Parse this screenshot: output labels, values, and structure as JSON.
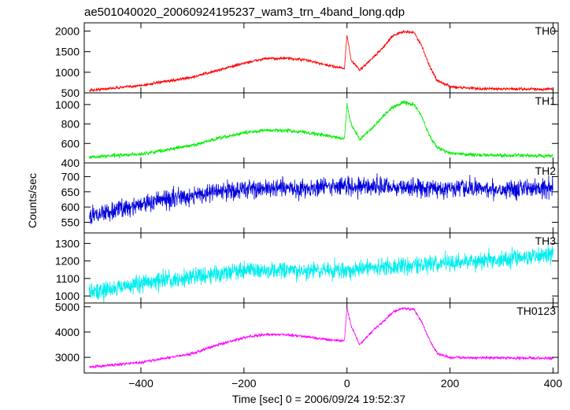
{
  "title": "ae501040020_20060924195237_wam3_trn_4band_long.qdp",
  "xlabel": "Time [sec] 0 = 2006/09/24 19:52:37",
  "ylabel": "Counts/sec",
  "chart_data": {
    "type": "line",
    "title": "ae501040020_20060924195237_wam3_trn_4band_long.qdp",
    "xlabel": "Time [sec] 0 = 2006/09/24 19:52:37",
    "ylabel": "Counts/sec",
    "xlim": [
      -510,
      410
    ],
    "x_ticks": [
      -400,
      -200,
      0,
      200,
      400
    ],
    "grid": false,
    "panels": [
      {
        "name": "TH0",
        "color": "#ff0000",
        "ylim": [
          500,
          2200
        ],
        "y_ticks": [
          500,
          1000,
          1500,
          2000
        ],
        "noise": 35,
        "keypoints": [
          [
            -500,
            560
          ],
          [
            -400,
            680
          ],
          [
            -300,
            880
          ],
          [
            -250,
            1050
          ],
          [
            -200,
            1220
          ],
          [
            -160,
            1330
          ],
          [
            -120,
            1340
          ],
          [
            -80,
            1300
          ],
          [
            -40,
            1170
          ],
          [
            -5,
            1100
          ],
          [
            0,
            1900
          ],
          [
            8,
            1300
          ],
          [
            25,
            1050
          ],
          [
            50,
            1350
          ],
          [
            70,
            1600
          ],
          [
            90,
            1900
          ],
          [
            110,
            1980
          ],
          [
            130,
            1970
          ],
          [
            145,
            1650
          ],
          [
            160,
            1150
          ],
          [
            175,
            800
          ],
          [
            200,
            650
          ],
          [
            260,
            600
          ],
          [
            400,
            590
          ]
        ]
      },
      {
        "name": "TH1",
        "color": "#00ee00",
        "ylim": [
          400,
          1120
        ],
        "y_ticks": [
          400,
          600,
          800,
          1000
        ],
        "noise": 18,
        "keypoints": [
          [
            -500,
            460
          ],
          [
            -400,
            490
          ],
          [
            -300,
            580
          ],
          [
            -250,
            650
          ],
          [
            -200,
            710
          ],
          [
            -160,
            735
          ],
          [
            -120,
            735
          ],
          [
            -80,
            715
          ],
          [
            -40,
            680
          ],
          [
            -5,
            650
          ],
          [
            0,
            1000
          ],
          [
            8,
            800
          ],
          [
            25,
            640
          ],
          [
            50,
            760
          ],
          [
            70,
            880
          ],
          [
            90,
            980
          ],
          [
            110,
            1020
          ],
          [
            130,
            1000
          ],
          [
            145,
            880
          ],
          [
            160,
            680
          ],
          [
            175,
            560
          ],
          [
            200,
            500
          ],
          [
            260,
            480
          ],
          [
            400,
            470
          ]
        ]
      },
      {
        "name": "TH2",
        "color": "#0000dd",
        "ylim": [
          515,
          745
        ],
        "y_ticks": [
          550,
          600,
          650,
          700
        ],
        "noise": 30,
        "keypoints": [
          [
            -500,
            570
          ],
          [
            -400,
            610
          ],
          [
            -300,
            640
          ],
          [
            -200,
            660
          ],
          [
            -100,
            660
          ],
          [
            0,
            670
          ],
          [
            100,
            665
          ],
          [
            200,
            660
          ],
          [
            300,
            660
          ],
          [
            400,
            665
          ]
        ]
      },
      {
        "name": "TH3",
        "color": "#00eeee",
        "ylim": [
          960,
          1360
        ],
        "y_ticks": [
          1000,
          1100,
          1200,
          1300
        ],
        "noise": 50,
        "keypoints": [
          [
            -500,
            1020
          ],
          [
            -400,
            1070
          ],
          [
            -300,
            1110
          ],
          [
            -200,
            1150
          ],
          [
            -100,
            1140
          ],
          [
            0,
            1150
          ],
          [
            100,
            1170
          ],
          [
            200,
            1190
          ],
          [
            300,
            1210
          ],
          [
            400,
            1240
          ]
        ]
      },
      {
        "name": "TH0123",
        "color": "#ff00ff",
        "ylim": [
          2380,
          5150
        ],
        "y_ticks": [
          3000,
          4000,
          5000
        ],
        "noise": 55,
        "keypoints": [
          [
            -500,
            2620
          ],
          [
            -400,
            2800
          ],
          [
            -300,
            3150
          ],
          [
            -250,
            3500
          ],
          [
            -200,
            3780
          ],
          [
            -160,
            3900
          ],
          [
            -120,
            3900
          ],
          [
            -80,
            3820
          ],
          [
            -40,
            3700
          ],
          [
            -5,
            3660
          ],
          [
            0,
            4950
          ],
          [
            8,
            4250
          ],
          [
            25,
            3500
          ],
          [
            50,
            4050
          ],
          [
            70,
            4400
          ],
          [
            90,
            4800
          ],
          [
            110,
            4950
          ],
          [
            130,
            4900
          ],
          [
            145,
            4400
          ],
          [
            160,
            3700
          ],
          [
            175,
            3150
          ],
          [
            200,
            3000
          ],
          [
            260,
            2980
          ],
          [
            400,
            2960
          ]
        ]
      }
    ]
  }
}
